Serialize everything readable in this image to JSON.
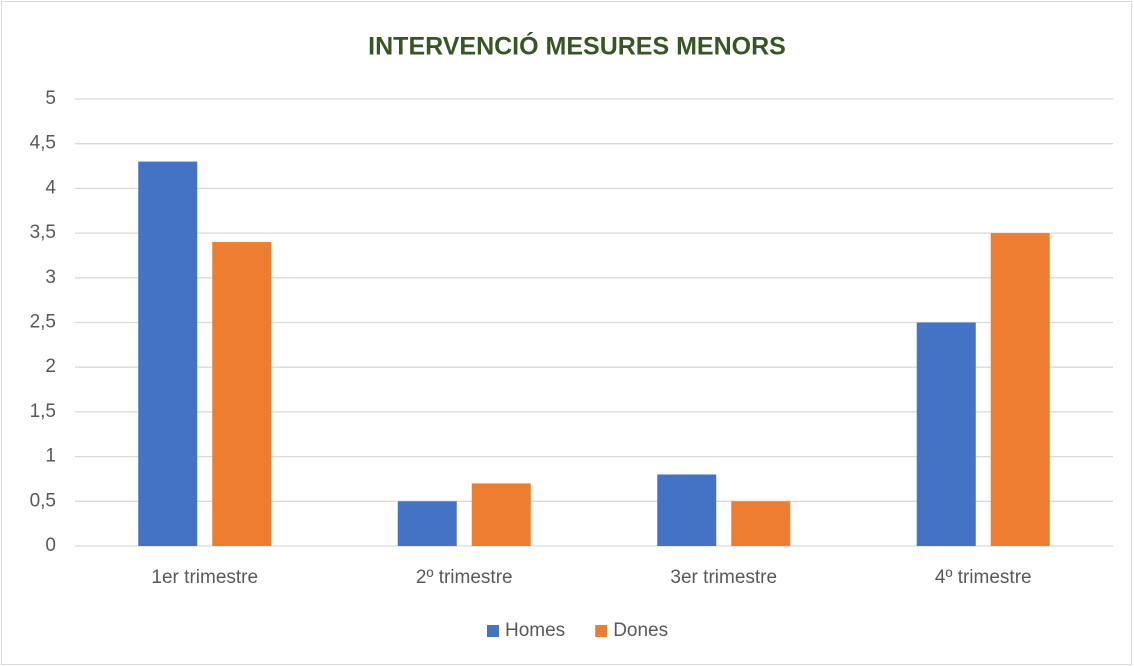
{
  "chart_data": {
    "type": "bar",
    "title": "INTERVENCIÓ MESURES MENORS",
    "categories": [
      "1er trimestre",
      "2º trimestre",
      "3er trimestre",
      "4º trimestre"
    ],
    "series": [
      {
        "name": "Homes",
        "color": "#4472c4",
        "values": [
          4.3,
          0.5,
          0.8,
          2.5
        ]
      },
      {
        "name": "Dones",
        "color": "#ed7d31",
        "values": [
          3.4,
          0.7,
          0.5,
          3.5
        ]
      }
    ],
    "ylim": [
      0,
      5
    ],
    "yticks": [
      0,
      {
        "value": 0.5,
        "label": "0,5"
      },
      1,
      {
        "value": 1.5,
        "label": "1,5"
      },
      2,
      {
        "value": 2.5,
        "label": "2,5"
      },
      3,
      {
        "value": 3.5,
        "label": "3,5"
      },
      4,
      {
        "value": 4.5,
        "label": "4,5"
      },
      5
    ],
    "grid": true,
    "legend": "bottom"
  }
}
